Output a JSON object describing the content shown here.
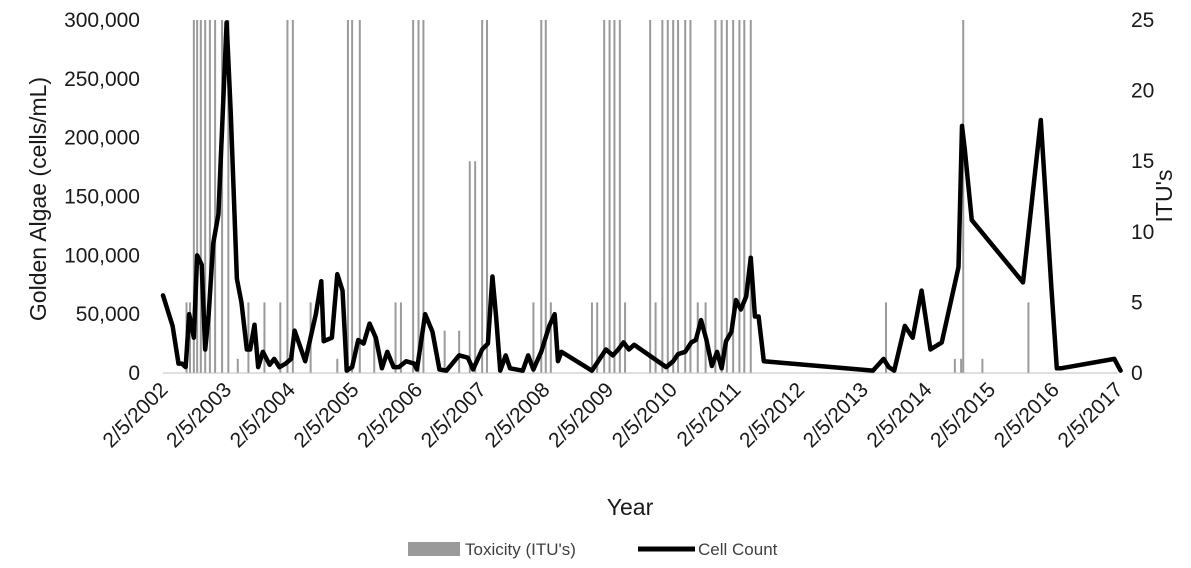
{
  "chart_data": {
    "type": "bar+line",
    "title": "",
    "xlabel": "Year",
    "ylabel_left": "Golden Algae (cells/mL)",
    "ylabel_right": "ITU's",
    "ylim_left": [
      0,
      300000
    ],
    "ylim_right": [
      0,
      25
    ],
    "xlim": [
      "2002-02-05",
      "2017-02-05"
    ],
    "x_tick_labels": [
      "2/5/2002",
      "2/5/2003",
      "2/5/2004",
      "2/5/2005",
      "2/5/2006",
      "2/5/2007",
      "2/5/2008",
      "2/5/2009",
      "2/5/2010",
      "2/5/2011",
      "2/5/2012",
      "2/5/2013",
      "2/5/2014",
      "2/5/2015",
      "2/5/2016",
      "2/5/2017"
    ],
    "y_left_tick_labels": [
      "0",
      "50,000",
      "100,000",
      "150,000",
      "200,000",
      "250,000",
      "300,000"
    ],
    "y_right_tick_labels": [
      "0",
      "5",
      "10",
      "15",
      "20",
      "25"
    ],
    "grid": false,
    "legend_position": "bottom",
    "series": [
      {
        "name": "Toxicity (ITU's)",
        "kind": "bar",
        "axis": "right",
        "color": "#9a9a9a",
        "points": [
          [
            "2002-06-20",
            5
          ],
          [
            "2002-07-10",
            5
          ],
          [
            "2002-08-01",
            25
          ],
          [
            "2002-08-20",
            25
          ],
          [
            "2002-09-10",
            25
          ],
          [
            "2002-10-05",
            25
          ],
          [
            "2002-11-01",
            25
          ],
          [
            "2002-12-01",
            25
          ],
          [
            "2003-01-10",
            25
          ],
          [
            "2003-02-15",
            25
          ],
          [
            "2003-04-10",
            1
          ],
          [
            "2003-06-10",
            5
          ],
          [
            "2003-09-10",
            5
          ],
          [
            "2003-12-10",
            5
          ],
          [
            "2004-01-20",
            25
          ],
          [
            "2004-02-20",
            25
          ],
          [
            "2004-06-01",
            5
          ],
          [
            "2004-11-01",
            1
          ],
          [
            "2005-01-01",
            25
          ],
          [
            "2005-01-25",
            25
          ],
          [
            "2005-03-10",
            25
          ],
          [
            "2005-06-01",
            3
          ],
          [
            "2005-10-01",
            5
          ],
          [
            "2005-11-01",
            5
          ],
          [
            "2006-01-10",
            25
          ],
          [
            "2006-02-10",
            25
          ],
          [
            "2006-03-10",
            25
          ],
          [
            "2006-07-10",
            3
          ],
          [
            "2006-10-01",
            3
          ],
          [
            "2006-12-01",
            15
          ],
          [
            "2007-01-01",
            15
          ],
          [
            "2007-02-10",
            25
          ],
          [
            "2007-03-10",
            25
          ],
          [
            "2007-12-01",
            5
          ],
          [
            "2008-01-15",
            25
          ],
          [
            "2008-02-10",
            25
          ],
          [
            "2008-03-10",
            5
          ],
          [
            "2008-11-01",
            5
          ],
          [
            "2008-12-01",
            5
          ],
          [
            "2009-01-10",
            25
          ],
          [
            "2009-02-10",
            25
          ],
          [
            "2009-03-10",
            25
          ],
          [
            "2009-04-10",
            25
          ],
          [
            "2009-05-10",
            5
          ],
          [
            "2009-10-01",
            25
          ],
          [
            "2009-11-01",
            5
          ],
          [
            "2009-12-10",
            25
          ],
          [
            "2010-01-10",
            25
          ],
          [
            "2010-02-10",
            25
          ],
          [
            "2010-03-10",
            25
          ],
          [
            "2010-04-20",
            25
          ],
          [
            "2010-05-20",
            25
          ],
          [
            "2010-07-01",
            5
          ],
          [
            "2010-08-15",
            5
          ],
          [
            "2010-10-10",
            25
          ],
          [
            "2010-11-15",
            25
          ],
          [
            "2010-12-15",
            25
          ],
          [
            "2011-01-20",
            25
          ],
          [
            "2011-02-25",
            25
          ],
          [
            "2011-03-25",
            25
          ],
          [
            "2011-05-01",
            25
          ],
          [
            "2013-06-15",
            5
          ],
          [
            "2014-07-15",
            1
          ],
          [
            "2014-08-20",
            1
          ],
          [
            "2014-09-01",
            25
          ],
          [
            "2014-12-20",
            1
          ],
          [
            "2015-09-10",
            5
          ]
        ]
      },
      {
        "name": "Cell Count",
        "kind": "line",
        "axis": "left",
        "color": "#000000",
        "points": [
          [
            "2002-02-05",
            66000
          ],
          [
            "2002-04-01",
            40000
          ],
          [
            "2002-05-05",
            8000
          ],
          [
            "2002-05-25",
            8000
          ],
          [
            "2002-06-15",
            5000
          ],
          [
            "2002-07-05",
            50000
          ],
          [
            "2002-08-01",
            30000
          ],
          [
            "2002-08-20",
            100000
          ],
          [
            "2002-09-15",
            92000
          ],
          [
            "2002-10-05",
            20000
          ],
          [
            "2002-10-25",
            50000
          ],
          [
            "2002-11-20",
            110000
          ],
          [
            "2002-12-20",
            135000
          ],
          [
            "2003-02-05",
            298000
          ],
          [
            "2003-03-01",
            220000
          ],
          [
            "2003-04-05",
            80000
          ],
          [
            "2003-05-01",
            60000
          ],
          [
            "2003-06-01",
            20000
          ],
          [
            "2003-06-20",
            20000
          ],
          [
            "2003-07-15",
            41000
          ],
          [
            "2003-08-05",
            5000
          ],
          [
            "2003-09-01",
            18000
          ],
          [
            "2003-10-10",
            7000
          ],
          [
            "2003-11-05",
            12000
          ],
          [
            "2003-12-05",
            5000
          ],
          [
            "2004-01-10",
            8000
          ],
          [
            "2004-02-10",
            12000
          ],
          [
            "2004-03-01",
            36000
          ],
          [
            "2004-05-01",
            10000
          ],
          [
            "2004-07-01",
            50000
          ],
          [
            "2004-08-01",
            78000
          ],
          [
            "2004-08-15",
            27000
          ],
          [
            "2004-10-01",
            30000
          ],
          [
            "2004-11-01",
            84000
          ],
          [
            "2004-12-01",
            70000
          ],
          [
            "2004-12-25",
            2000
          ],
          [
            "2005-01-25",
            5000
          ],
          [
            "2005-03-01",
            28000
          ],
          [
            "2005-04-01",
            25000
          ],
          [
            "2005-05-05",
            42000
          ],
          [
            "2005-06-10",
            30000
          ],
          [
            "2005-07-15",
            4000
          ],
          [
            "2005-08-15",
            18000
          ],
          [
            "2005-09-20",
            5000
          ],
          [
            "2005-10-20",
            5000
          ],
          [
            "2005-12-01",
            10000
          ],
          [
            "2006-01-15",
            8000
          ],
          [
            "2006-02-01",
            3000
          ],
          [
            "2006-03-20",
            50000
          ],
          [
            "2006-05-01",
            35000
          ],
          [
            "2006-06-10",
            3000
          ],
          [
            "2006-07-20",
            2000
          ],
          [
            "2006-10-01",
            15000
          ],
          [
            "2006-11-20",
            13000
          ],
          [
            "2006-12-20",
            3000
          ],
          [
            "2007-02-10",
            20000
          ],
          [
            "2007-03-15",
            25000
          ],
          [
            "2007-04-10",
            82000
          ],
          [
            "2007-05-01",
            48000
          ],
          [
            "2007-05-25",
            2000
          ],
          [
            "2007-06-25",
            15000
          ],
          [
            "2007-07-20",
            4000
          ],
          [
            "2007-10-01",
            2000
          ],
          [
            "2007-11-01",
            15000
          ],
          [
            "2007-12-01",
            3000
          ],
          [
            "2008-01-15",
            18000
          ],
          [
            "2008-03-01",
            40000
          ],
          [
            "2008-04-01",
            50000
          ],
          [
            "2008-04-20",
            10000
          ],
          [
            "2008-05-10",
            18000
          ],
          [
            "2008-11-01",
            2000
          ],
          [
            "2009-01-20",
            20000
          ],
          [
            "2009-03-01",
            15000
          ],
          [
            "2009-04-01",
            20000
          ],
          [
            "2009-05-01",
            26000
          ],
          [
            "2009-06-01",
            20000
          ],
          [
            "2009-07-01",
            24000
          ],
          [
            "2010-01-01",
            5000
          ],
          [
            "2010-02-10",
            10000
          ],
          [
            "2010-03-10",
            16000
          ],
          [
            "2010-04-20",
            18000
          ],
          [
            "2010-05-25",
            26000
          ],
          [
            "2010-06-20",
            28000
          ],
          [
            "2010-07-20",
            45000
          ],
          [
            "2010-08-20",
            28000
          ],
          [
            "2010-09-20",
            6000
          ],
          [
            "2010-10-20",
            18000
          ],
          [
            "2010-11-15",
            4000
          ],
          [
            "2010-12-10",
            27000
          ],
          [
            "2011-01-10",
            35000
          ],
          [
            "2011-02-05",
            62000
          ],
          [
            "2011-03-05",
            54000
          ],
          [
            "2011-04-05",
            65000
          ],
          [
            "2011-05-01",
            98000
          ],
          [
            "2011-05-25",
            48000
          ],
          [
            "2011-06-15",
            48000
          ],
          [
            "2011-07-15",
            10000
          ],
          [
            "2013-04-01",
            2000
          ],
          [
            "2013-06-01",
            12000
          ],
          [
            "2013-07-01",
            5000
          ],
          [
            "2013-08-01",
            2000
          ],
          [
            "2013-10-01",
            40000
          ],
          [
            "2013-11-15",
            30000
          ],
          [
            "2014-01-05",
            70000
          ],
          [
            "2014-02-25",
            20000
          ],
          [
            "2014-05-01",
            26000
          ],
          [
            "2014-08-05",
            90000
          ],
          [
            "2014-08-25",
            210000
          ],
          [
            "2014-09-10",
            190000
          ],
          [
            "2014-10-20",
            130000
          ],
          [
            "2015-08-10",
            77000
          ],
          [
            "2015-11-20",
            215000
          ],
          [
            "2016-01-20",
            72000
          ],
          [
            "2016-02-20",
            4000
          ],
          [
            "2016-03-15",
            4000
          ],
          [
            "2017-01-15",
            12000
          ],
          [
            "2017-02-20",
            2000
          ]
        ]
      }
    ]
  }
}
